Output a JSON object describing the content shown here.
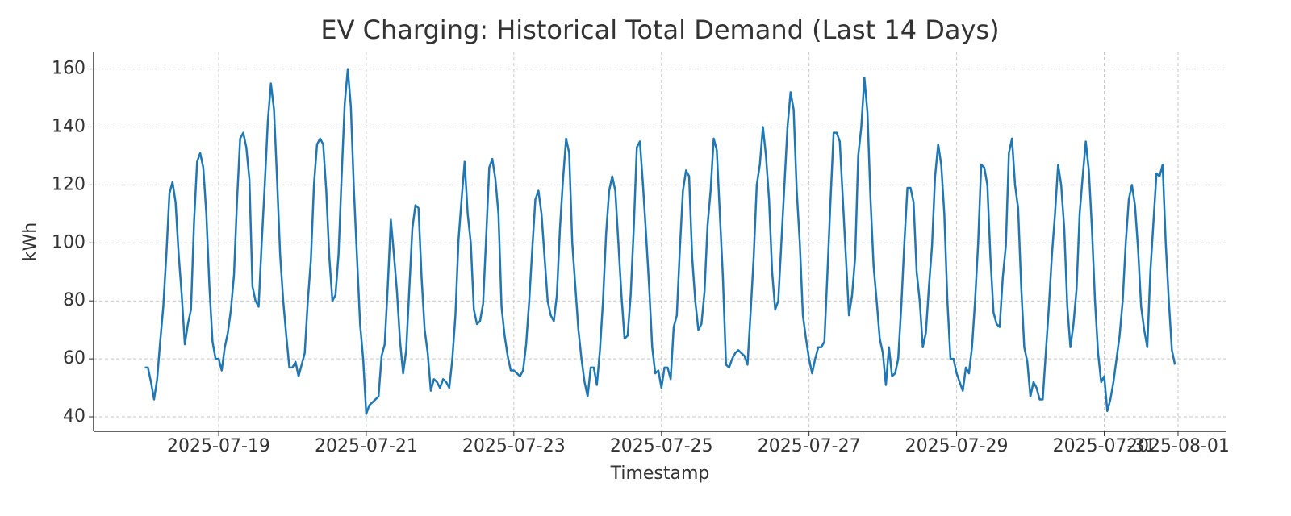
{
  "chart_data": {
    "type": "line",
    "title": "EV Charging: Historical Total Demand (Last 14 Days)",
    "xlabel": "Timestamp",
    "ylabel": "kWh",
    "x": [
      "2025-07-18T00:00",
      "2025-07-18T01:00",
      "2025-07-18T02:00",
      "2025-07-18T03:00",
      "2025-07-18T04:00",
      "2025-07-18T05:00",
      "2025-07-18T06:00",
      "2025-07-18T07:00",
      "2025-07-18T08:00",
      "2025-07-18T09:00",
      "2025-07-18T10:00",
      "2025-07-18T11:00",
      "2025-07-18T12:00",
      "2025-07-18T13:00",
      "2025-07-18T14:00",
      "2025-07-18T15:00",
      "2025-07-18T16:00",
      "2025-07-18T17:00",
      "2025-07-18T18:00",
      "2025-07-18T19:00",
      "2025-07-18T20:00",
      "2025-07-18T21:00",
      "2025-07-18T22:00",
      "2025-07-18T23:00",
      "2025-07-19T00:00",
      "2025-07-19T01:00",
      "2025-07-19T02:00",
      "2025-07-19T03:00",
      "2025-07-19T04:00",
      "2025-07-19T05:00",
      "2025-07-19T06:00",
      "2025-07-19T07:00",
      "2025-07-19T08:00",
      "2025-07-19T09:00",
      "2025-07-19T10:00",
      "2025-07-19T11:00",
      "2025-07-19T12:00",
      "2025-07-19T13:00",
      "2025-07-19T14:00",
      "2025-07-19T15:00",
      "2025-07-19T16:00",
      "2025-07-19T17:00",
      "2025-07-19T18:00",
      "2025-07-19T19:00",
      "2025-07-19T20:00",
      "2025-07-19T21:00",
      "2025-07-19T22:00",
      "2025-07-19T23:00",
      "2025-07-20T00:00",
      "2025-07-20T01:00",
      "2025-07-20T02:00",
      "2025-07-20T03:00",
      "2025-07-20T04:00",
      "2025-07-20T05:00",
      "2025-07-20T06:00",
      "2025-07-20T07:00",
      "2025-07-20T08:00",
      "2025-07-20T09:00",
      "2025-07-20T10:00",
      "2025-07-20T11:00",
      "2025-07-20T12:00",
      "2025-07-20T13:00",
      "2025-07-20T14:00",
      "2025-07-20T15:00",
      "2025-07-20T16:00",
      "2025-07-20T17:00",
      "2025-07-20T18:00",
      "2025-07-20T19:00",
      "2025-07-20T20:00",
      "2025-07-20T21:00",
      "2025-07-20T22:00",
      "2025-07-20T23:00",
      "2025-07-21T00:00",
      "2025-07-21T01:00",
      "2025-07-21T02:00",
      "2025-07-21T03:00",
      "2025-07-21T04:00",
      "2025-07-21T05:00",
      "2025-07-21T06:00",
      "2025-07-21T07:00",
      "2025-07-21T08:00",
      "2025-07-21T09:00",
      "2025-07-21T10:00",
      "2025-07-21T11:00",
      "2025-07-21T12:00",
      "2025-07-21T13:00",
      "2025-07-21T14:00",
      "2025-07-21T15:00",
      "2025-07-21T16:00",
      "2025-07-21T17:00",
      "2025-07-21T18:00",
      "2025-07-21T19:00",
      "2025-07-21T20:00",
      "2025-07-21T21:00",
      "2025-07-21T22:00",
      "2025-07-21T23:00",
      "2025-07-22T00:00",
      "2025-07-22T01:00",
      "2025-07-22T02:00",
      "2025-07-22T03:00",
      "2025-07-22T04:00",
      "2025-07-22T05:00",
      "2025-07-22T06:00",
      "2025-07-22T07:00",
      "2025-07-22T08:00",
      "2025-07-22T09:00",
      "2025-07-22T10:00",
      "2025-07-22T11:00",
      "2025-07-22T12:00",
      "2025-07-22T13:00",
      "2025-07-22T14:00",
      "2025-07-22T15:00",
      "2025-07-22T16:00",
      "2025-07-22T17:00",
      "2025-07-22T18:00",
      "2025-07-22T19:00",
      "2025-07-22T20:00",
      "2025-07-22T21:00",
      "2025-07-22T22:00",
      "2025-07-22T23:00",
      "2025-07-23T00:00",
      "2025-07-23T01:00",
      "2025-07-23T02:00",
      "2025-07-23T03:00",
      "2025-07-23T04:00",
      "2025-07-23T05:00",
      "2025-07-23T06:00",
      "2025-07-23T07:00",
      "2025-07-23T08:00",
      "2025-07-23T09:00",
      "2025-07-23T10:00",
      "2025-07-23T11:00",
      "2025-07-23T12:00",
      "2025-07-23T13:00",
      "2025-07-23T14:00",
      "2025-07-23T15:00",
      "2025-07-23T16:00",
      "2025-07-23T17:00",
      "2025-07-23T18:00",
      "2025-07-23T19:00",
      "2025-07-23T20:00",
      "2025-07-23T21:00",
      "2025-07-23T22:00",
      "2025-07-23T23:00",
      "2025-07-24T00:00",
      "2025-07-24T01:00",
      "2025-07-24T02:00",
      "2025-07-24T03:00",
      "2025-07-24T04:00",
      "2025-07-24T05:00",
      "2025-07-24T06:00",
      "2025-07-24T07:00",
      "2025-07-24T08:00",
      "2025-07-24T09:00",
      "2025-07-24T10:00",
      "2025-07-24T11:00",
      "2025-07-24T12:00",
      "2025-07-24T13:00",
      "2025-07-24T14:00",
      "2025-07-24T15:00",
      "2025-07-24T16:00",
      "2025-07-24T17:00",
      "2025-07-24T18:00",
      "2025-07-24T19:00",
      "2025-07-24T20:00",
      "2025-07-24T21:00",
      "2025-07-24T22:00",
      "2025-07-24T23:00",
      "2025-07-25T00:00",
      "2025-07-25T01:00",
      "2025-07-25T02:00",
      "2025-07-25T03:00",
      "2025-07-25T04:00",
      "2025-07-25T05:00",
      "2025-07-25T06:00",
      "2025-07-25T07:00",
      "2025-07-25T08:00",
      "2025-07-25T09:00",
      "2025-07-25T10:00",
      "2025-07-25T11:00",
      "2025-07-25T12:00",
      "2025-07-25T13:00",
      "2025-07-25T14:00",
      "2025-07-25T15:00",
      "2025-07-25T16:00",
      "2025-07-25T17:00",
      "2025-07-25T18:00",
      "2025-07-25T19:00",
      "2025-07-25T20:00",
      "2025-07-25T21:00",
      "2025-07-25T22:00",
      "2025-07-25T23:00",
      "2025-07-26T00:00",
      "2025-07-26T01:00",
      "2025-07-26T02:00",
      "2025-07-26T03:00",
      "2025-07-26T04:00",
      "2025-07-26T05:00",
      "2025-07-26T06:00",
      "2025-07-26T07:00",
      "2025-07-26T08:00",
      "2025-07-26T09:00",
      "2025-07-26T10:00",
      "2025-07-26T11:00",
      "2025-07-26T12:00",
      "2025-07-26T13:00",
      "2025-07-26T14:00",
      "2025-07-26T15:00",
      "2025-07-26T16:00",
      "2025-07-26T17:00",
      "2025-07-26T18:00",
      "2025-07-26T19:00",
      "2025-07-26T20:00",
      "2025-07-26T21:00",
      "2025-07-26T22:00",
      "2025-07-26T23:00",
      "2025-07-27T00:00",
      "2025-07-27T01:00",
      "2025-07-27T02:00",
      "2025-07-27T03:00",
      "2025-07-27T04:00",
      "2025-07-27T05:00",
      "2025-07-27T06:00",
      "2025-07-27T07:00",
      "2025-07-27T08:00",
      "2025-07-27T09:00",
      "2025-07-27T10:00",
      "2025-07-27T11:00",
      "2025-07-27T12:00",
      "2025-07-27T13:00",
      "2025-07-27T14:00",
      "2025-07-27T15:00",
      "2025-07-27T16:00",
      "2025-07-27T17:00",
      "2025-07-27T18:00",
      "2025-07-27T19:00",
      "2025-07-27T20:00",
      "2025-07-27T21:00",
      "2025-07-27T22:00",
      "2025-07-27T23:00",
      "2025-07-28T00:00",
      "2025-07-28T01:00",
      "2025-07-28T02:00",
      "2025-07-28T03:00",
      "2025-07-28T04:00",
      "2025-07-28T05:00",
      "2025-07-28T06:00",
      "2025-07-28T07:00",
      "2025-07-28T08:00",
      "2025-07-28T09:00",
      "2025-07-28T10:00",
      "2025-07-28T11:00",
      "2025-07-28T12:00",
      "2025-07-28T13:00",
      "2025-07-28T14:00",
      "2025-07-28T15:00",
      "2025-07-28T16:00",
      "2025-07-28T17:00",
      "2025-07-28T18:00",
      "2025-07-28T19:00",
      "2025-07-28T20:00",
      "2025-07-28T21:00",
      "2025-07-28T22:00",
      "2025-07-28T23:00",
      "2025-07-29T00:00",
      "2025-07-29T01:00",
      "2025-07-29T02:00",
      "2025-07-29T03:00",
      "2025-07-29T04:00",
      "2025-07-29T05:00",
      "2025-07-29T06:00",
      "2025-07-29T07:00",
      "2025-07-29T08:00",
      "2025-07-29T09:00",
      "2025-07-29T10:00",
      "2025-07-29T11:00",
      "2025-07-29T12:00",
      "2025-07-29T13:00",
      "2025-07-29T14:00",
      "2025-07-29T15:00",
      "2025-07-29T16:00",
      "2025-07-29T17:00",
      "2025-07-29T18:00",
      "2025-07-29T19:00",
      "2025-07-29T20:00",
      "2025-07-29T21:00",
      "2025-07-29T22:00",
      "2025-07-29T23:00",
      "2025-07-30T00:00",
      "2025-07-30T01:00",
      "2025-07-30T02:00",
      "2025-07-30T03:00",
      "2025-07-30T04:00",
      "2025-07-30T05:00",
      "2025-07-30T06:00",
      "2025-07-30T07:00",
      "2025-07-30T08:00",
      "2025-07-30T09:00",
      "2025-07-30T10:00",
      "2025-07-30T11:00",
      "2025-07-30T12:00",
      "2025-07-30T13:00",
      "2025-07-30T14:00",
      "2025-07-30T15:00",
      "2025-07-30T16:00",
      "2025-07-30T17:00",
      "2025-07-30T18:00",
      "2025-07-30T19:00",
      "2025-07-30T20:00",
      "2025-07-30T21:00",
      "2025-07-30T22:00",
      "2025-07-30T23:00",
      "2025-07-31T00:00",
      "2025-07-31T01:00",
      "2025-07-31T02:00",
      "2025-07-31T03:00",
      "2025-07-31T04:00",
      "2025-07-31T05:00",
      "2025-07-31T06:00",
      "2025-07-31T07:00",
      "2025-07-31T08:00",
      "2025-07-31T09:00",
      "2025-07-31T10:00",
      "2025-07-31T11:00",
      "2025-07-31T12:00",
      "2025-07-31T13:00",
      "2025-07-31T14:00",
      "2025-07-31T15:00",
      "2025-07-31T16:00",
      "2025-07-31T17:00",
      "2025-07-31T18:00",
      "2025-07-31T19:00",
      "2025-07-31T20:00",
      "2025-07-31T21:00",
      "2025-07-31T22:00",
      "2025-07-31T23:00"
    ],
    "series": [
      {
        "name": "Total Demand",
        "color": "#1f77b4",
        "values": [
          57,
          57,
          52,
          46,
          53,
          66,
          78,
          96,
          117,
          121,
          114,
          96,
          82,
          65,
          72,
          77,
          107,
          128,
          131,
          126,
          110,
          85,
          66,
          60,
          60,
          56,
          64,
          69,
          77,
          89,
          115,
          136,
          138,
          133,
          122,
          85,
          80,
          78,
          100,
          120,
          142,
          155,
          146,
          122,
          96,
          80,
          68,
          57,
          57,
          59,
          54,
          58,
          62,
          80,
          94,
          120,
          134,
          136,
          134,
          118,
          95,
          80,
          82,
          96,
          123,
          148,
          160,
          147,
          118,
          95,
          72,
          60,
          41,
          44,
          45,
          46,
          47,
          61,
          65,
          85,
          108,
          96,
          83,
          66,
          55,
          63,
          84,
          105,
          113,
          112,
          88,
          70,
          62,
          49,
          53,
          52,
          50,
          53,
          52,
          50,
          60,
          75,
          101,
          115,
          128,
          110,
          100,
          77,
          72,
          73,
          79,
          102,
          126,
          129,
          122,
          110,
          78,
          68,
          61,
          56,
          56,
          55,
          54,
          56,
          65,
          80,
          98,
          115,
          118,
          110,
          95,
          80,
          75,
          73,
          82,
          105,
          122,
          136,
          131,
          100,
          85,
          70,
          60,
          52,
          47,
          57,
          57,
          51,
          63,
          80,
          103,
          118,
          123,
          118,
          100,
          82,
          67,
          68,
          82,
          105,
          133,
          135,
          120,
          103,
          85,
          64,
          55,
          56,
          50,
          57,
          57,
          53,
          71,
          75,
          98,
          118,
          125,
          123,
          95,
          80,
          70,
          72,
          83,
          106,
          118,
          136,
          132,
          110,
          88,
          58,
          57,
          60,
          62,
          63,
          62,
          61,
          58,
          76,
          95,
          120,
          127,
          140,
          130,
          115,
          90,
          77,
          80,
          100,
          120,
          140,
          152,
          146,
          118,
          100,
          75,
          67,
          60,
          55,
          60,
          64,
          64,
          66,
          90,
          115,
          138,
          138,
          135,
          115,
          95,
          75,
          82,
          95,
          130,
          140,
          157,
          145,
          115,
          92,
          80,
          67,
          62,
          51,
          64,
          54,
          55,
          60,
          78,
          100,
          119,
          119,
          114,
          90,
          80,
          64,
          69,
          85,
          99,
          123,
          134,
          127,
          110,
          80,
          60,
          60,
          55,
          52,
          49,
          57,
          55,
          64,
          80,
          100,
          127,
          126,
          120,
          95,
          76,
          72,
          71,
          88,
          99,
          131,
          136,
          120,
          112,
          85,
          64,
          59,
          47,
          52,
          50,
          46,
          46,
          62,
          78,
          96,
          110,
          127,
          120,
          105,
          78,
          64,
          72,
          84,
          110,
          123,
          135,
          125,
          105,
          80,
          62,
          52,
          54,
          42,
          46,
          52,
          60,
          68,
          80,
          100,
          115,
          120,
          113,
          98,
          78,
          70,
          64,
          90,
          107,
          124,
          123,
          127,
          100,
          80,
          63,
          58
        ]
      }
    ],
    "xlim": [
      "2025-07-17T07:20",
      "2025-08-01T15:45"
    ],
    "xticks": [
      "2025-07-19",
      "2025-07-21",
      "2025-07-23",
      "2025-07-25",
      "2025-07-27",
      "2025-07-29",
      "2025-07-31",
      "2025-08-01"
    ],
    "ylim": [
      35,
      166
    ],
    "yticks": [
      40,
      60,
      80,
      100,
      120,
      140,
      160
    ],
    "grid": true
  }
}
